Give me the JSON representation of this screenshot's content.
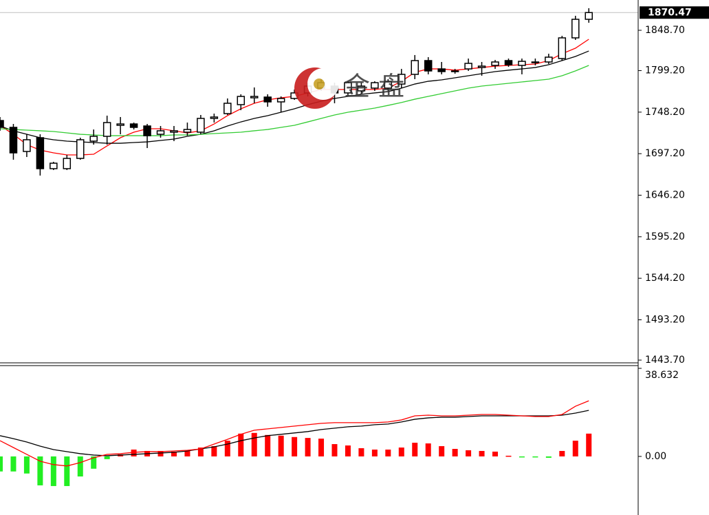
{
  "chart_data": [
    {
      "type": "candlestick",
      "open": [
        1737.9,
        1729.5,
        1699.9,
        1716.8,
        1678.8,
        1678.8,
        1691.4,
        1712.6,
        1718.5,
        1732.0,
        1733.7,
        1731.2,
        1721.0,
        1723.6,
        1723.6,
        1723.6,
        1740.5,
        1746.4,
        1757.4,
        1765.8,
        1766.7,
        1760.8,
        1765.0,
        1771.8,
        1777.7,
        1780.2,
        1771.8,
        1774.3,
        1777.7,
        1777.7,
        1782.7,
        1794.6,
        1811.5,
        1801.3,
        1798.0,
        1801.3,
        1803.0,
        1805.6,
        1811.5,
        1805.6,
        1809.0,
        1809.8,
        1814.0,
        1839.4,
        1862.2
      ],
      "high": [
        1742.2,
        1733.7,
        1721.0,
        1721.0,
        1687.2,
        1695.7,
        1716.8,
        1726.9,
        1743.9,
        1742.2,
        1735.4,
        1733.7,
        1731.2,
        1731.2,
        1735.4,
        1744.7,
        1746.4,
        1765.0,
        1770.1,
        1778.5,
        1770.1,
        1767.5,
        1776.0,
        1784.4,
        1788.7,
        1784.4,
        1786.1,
        1784.4,
        1786.1,
        1788.7,
        1801.3,
        1818.3,
        1815.7,
        1809.8,
        1801.3,
        1814.0,
        1809.8,
        1812.3,
        1814.0,
        1814.0,
        1814.0,
        1819.9,
        1841.9,
        1866.5,
        1875.8
      ],
      "low": [
        1725.3,
        1689.8,
        1693.1,
        1670.3,
        1677.1,
        1677.1,
        1689.8,
        1708.3,
        1708.3,
        1721.0,
        1726.9,
        1704.1,
        1716.8,
        1712.6,
        1719.3,
        1721.0,
        1735.4,
        1744.7,
        1750.6,
        1759.1,
        1754.8,
        1748.1,
        1763.3,
        1767.5,
        1774.3,
        1759.1,
        1767.5,
        1770.1,
        1774.3,
        1774.3,
        1777.7,
        1788.7,
        1794.6,
        1794.6,
        1795.4,
        1798.8,
        1792.9,
        1801.3,
        1803.9,
        1794.6,
        1805.6,
        1807.3,
        1811.5,
        1836.9,
        1858.0
      ],
      "close": [
        1729.5,
        1698.2,
        1714.3,
        1678.8,
        1685.5,
        1691.4,
        1714.3,
        1718.5,
        1735.4,
        1733.7,
        1729.5,
        1719.3,
        1725.3,
        1725.3,
        1726.9,
        1740.5,
        1742.2,
        1759.1,
        1767.5,
        1767.5,
        1760.8,
        1765.0,
        1771.8,
        1780.2,
        1784.4,
        1771.8,
        1784.4,
        1780.2,
        1784.4,
        1786.1,
        1794.6,
        1811.5,
        1798.8,
        1798.0,
        1798.8,
        1808.1,
        1804.7,
        1809.8,
        1806.4,
        1810.6,
        1809.8,
        1815.7,
        1839.4,
        1862.2,
        1870.47
      ],
      "up_color": "#ffffff",
      "down_color": "#000000",
      "series": [
        {
          "color": "#ff0000",
          "values": [
            1732.0,
            1721.0,
            1708.3,
            1701.6,
            1698.2,
            1695.7,
            1695.7,
            1696.5,
            1706.7,
            1716.8,
            1723.6,
            1727.8,
            1727.8,
            1725.3,
            1722.7,
            1725.3,
            1733.7,
            1743.9,
            1752.3,
            1759.1,
            1763.3,
            1765.8,
            1767.5,
            1771.8,
            1776.0,
            1776.0,
            1776.0,
            1776.0,
            1776.0,
            1777.7,
            1786.1,
            1797.1,
            1801.3,
            1801.3,
            1799.7,
            1801.3,
            1803.0,
            1804.7,
            1805.6,
            1806.4,
            1807.3,
            1811.5,
            1819.9,
            1826.7,
            1837.7
          ]
        },
        {
          "color": "#000000",
          "values": [
            1731.2,
            1725.3,
            1721.0,
            1716.8,
            1714.3,
            1712.6,
            1711.7,
            1710.9,
            1710.0,
            1710.0,
            1710.9,
            1711.7,
            1713.4,
            1715.1,
            1718.5,
            1721.0,
            1725.3,
            1731.2,
            1736.2,
            1740.5,
            1743.9,
            1748.1,
            1752.3,
            1757.4,
            1761.6,
            1765.0,
            1767.5,
            1770.1,
            1771.8,
            1773.4,
            1777.7,
            1782.7,
            1786.1,
            1787.8,
            1790.4,
            1792.9,
            1795.4,
            1798.0,
            1799.7,
            1801.3,
            1803.0,
            1806.4,
            1811.5,
            1816.6,
            1823.3
          ]
        },
        {
          "color": "#33cc33",
          "values": [
            1727.8,
            1726.9,
            1726.1,
            1725.3,
            1724.4,
            1722.7,
            1721.0,
            1720.2,
            1719.3,
            1719.3,
            1719.3,
            1719.3,
            1719.3,
            1720.2,
            1720.2,
            1721.0,
            1721.9,
            1722.7,
            1723.6,
            1725.3,
            1726.9,
            1729.5,
            1732.0,
            1736.2,
            1740.5,
            1744.7,
            1748.1,
            1750.6,
            1753.2,
            1756.5,
            1760.0,
            1764.1,
            1767.5,
            1770.9,
            1774.3,
            1777.7,
            1780.2,
            1781.9,
            1783.6,
            1785.3,
            1787.0,
            1788.7,
            1792.9,
            1798.8,
            1805.6
          ]
        }
      ],
      "last_price": 1870.47,
      "watermark": "金 盘",
      "ylim": [
        1439.5,
        1885.9
      ],
      "yticks": [
        {
          "value": 1848.7,
          "label": "1848.70"
        },
        {
          "value": 1799.2,
          "label": "1799.20"
        },
        {
          "value": 1748.2,
          "label": "1748.20"
        },
        {
          "value": 1697.2,
          "label": "1697.20"
        },
        {
          "value": 1646.2,
          "label": "1646.20"
        },
        {
          "value": 1595.2,
          "label": "1595.20"
        },
        {
          "value": 1544.2,
          "label": "1544.20"
        },
        {
          "value": 1493.2,
          "label": "1493.20"
        },
        {
          "value": 1443.7,
          "label": "1443.70"
        }
      ]
    },
    {
      "type": "macd",
      "histogram": [
        -6.6,
        -6.6,
        -7.5,
        -12.7,
        -13.0,
        -13.0,
        -8.8,
        -5.4,
        -1.2,
        0.9,
        3.0,
        2.4,
        2.4,
        2.1,
        2.4,
        3.9,
        4.5,
        6.9,
        10.0,
        10.3,
        9.4,
        9.1,
        8.5,
        8.1,
        7.8,
        5.4,
        4.8,
        3.6,
        3.0,
        3.0,
        3.9,
        6.0,
        5.7,
        4.5,
        3.3,
        2.7,
        2.4,
        2.1,
        0.3,
        -0.3,
        -0.3,
        -0.6,
        2.4,
        6.9,
        10.0
      ],
      "positive_color": "#ff0000",
      "negative_color": "#22ee22",
      "series": [
        {
          "color": "#000000",
          "values": [
            9.1,
            7.8,
            6.3,
            4.5,
            3.0,
            2.1,
            1.2,
            0.6,
            0.3,
            0.6,
            0.9,
            1.2,
            1.5,
            1.8,
            2.4,
            3.3,
            4.2,
            5.4,
            6.9,
            8.1,
            9.1,
            9.7,
            10.3,
            10.9,
            11.8,
            12.4,
            13.0,
            13.3,
            13.9,
            14.2,
            15.1,
            16.3,
            16.9,
            17.2,
            17.2,
            17.5,
            17.8,
            17.8,
            17.8,
            17.8,
            17.8,
            17.8,
            18.1,
            19.0,
            20.2
          ]
        },
        {
          "color": "#ff0000",
          "values": [
            6.9,
            3.9,
            0.9,
            -2.1,
            -3.6,
            -4.2,
            -2.7,
            -0.6,
            0.9,
            1.2,
            1.8,
            2.1,
            2.1,
            2.4,
            2.7,
            3.3,
            5.4,
            7.5,
            9.7,
            11.5,
            12.1,
            12.7,
            13.3,
            13.9,
            14.5,
            14.8,
            14.8,
            14.8,
            14.8,
            15.1,
            16.0,
            17.8,
            18.1,
            17.8,
            17.8,
            18.1,
            18.4,
            18.4,
            18.1,
            17.8,
            17.5,
            17.5,
            18.4,
            22.0,
            24.4
          ]
        }
      ],
      "ylim": [
        -25.7,
        38.632
      ],
      "yticks": [
        38.632,
        {
          "value": 0,
          "label": "0.00"
        }
      ]
    }
  ]
}
